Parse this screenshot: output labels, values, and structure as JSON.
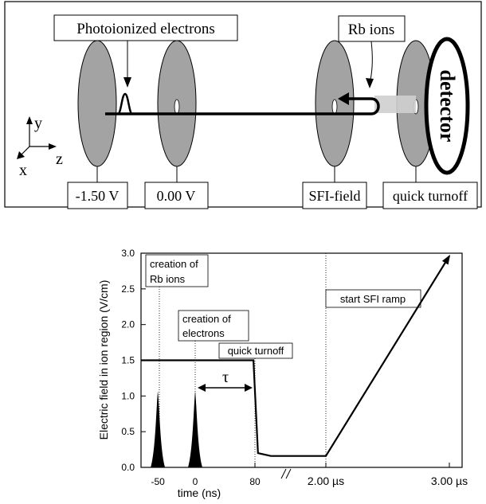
{
  "apparatus": {
    "photo_label": "Photoionized electrons",
    "rb_label": "Rb ions",
    "detector": "detector",
    "plates": [
      "-1.50 V",
      "0.00 V",
      "SFI-field",
      "quick turnoff"
    ],
    "axes": {
      "y": "y",
      "z": "z",
      "x": "x"
    }
  },
  "chart_data": {
    "type": "line",
    "ylabel": "Electric field in ion region (V/cm)",
    "xlabel": "time (ns)",
    "ylim": [
      0,
      3.0
    ],
    "yticks": [
      "0.0",
      "0.5",
      "1.0",
      "1.5",
      "2.0",
      "2.5",
      "3.0"
    ],
    "xticks": [
      "-50",
      "0",
      "80",
      "2.00 µs",
      "3.00 µs"
    ],
    "annotations": {
      "rb": [
        "creation of",
        "Rb ions"
      ],
      "el": [
        "creation of",
        "electrons"
      ],
      "quick": "quick turnoff",
      "sfi": "start SFI ramp",
      "tau": "τ"
    },
    "series": [
      {
        "points": [
          [
            -95,
            1.5
          ],
          [
            78,
            1.5
          ],
          [
            84,
            0.2
          ],
          [
            95,
            0.16
          ],
          [
            2.0,
            0.16
          ],
          [
            3.0,
            2.96
          ]
        ]
      }
    ],
    "pulses": [
      {
        "x": -50,
        "height": 1.07
      },
      {
        "x": 0,
        "height": 1.07
      }
    ]
  }
}
